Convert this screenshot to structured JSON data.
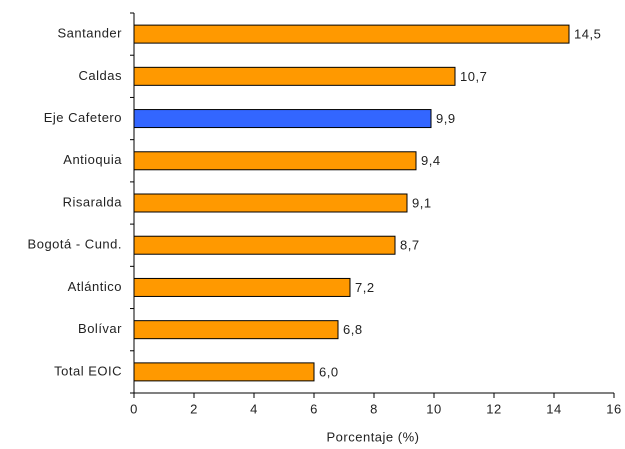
{
  "chart_data": {
    "type": "hbar",
    "categories": [
      "Santander",
      "Caldas",
      "Eje Cafetero",
      "Antioquia",
      "Risaralda",
      "Bogotá - Cund.",
      "Atlántico",
      "Bolívar",
      "Total EOIC"
    ],
    "values": [
      14.5,
      10.7,
      9.9,
      9.4,
      9.1,
      8.7,
      7.2,
      6.8,
      6.0
    ],
    "value_labels": [
      "14,5",
      "10,7",
      "9,9",
      "9,4",
      "9,1",
      "8,7",
      "7,2",
      "6,8",
      "6,0"
    ],
    "colors": [
      "#ff9900",
      "#ff9900",
      "#3366ff",
      "#ff9900",
      "#ff9900",
      "#ff9900",
      "#ff9900",
      "#ff9900",
      "#ff9900"
    ],
    "xlabel": "Porcentaje (%)",
    "xlim": [
      0,
      16
    ],
    "xticks": [
      0,
      2,
      4,
      6,
      8,
      10,
      12,
      14,
      16
    ],
    "grid": false
  }
}
